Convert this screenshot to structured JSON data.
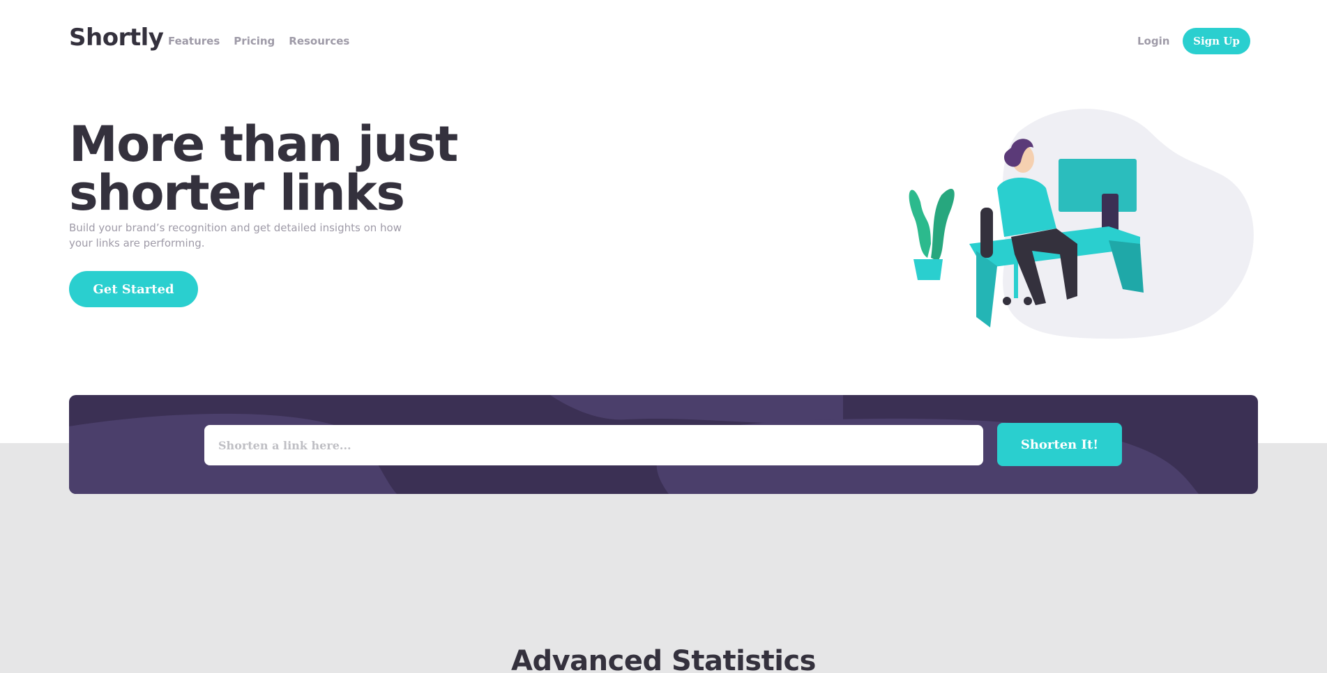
{
  "header": {
    "logo": "Shortly",
    "nav": [
      "Features",
      "Pricing",
      "Resources"
    ],
    "login": "Login",
    "signup": "Sign Up"
  },
  "hero": {
    "title": "More than just shorter links",
    "subtitle": "Build your brand’s recognition and get detailed insights on how your links are performing.",
    "cta": "Get Started",
    "illustration": "person-working-at-desk-illustration"
  },
  "shorten": {
    "placeholder": "Shorten a link here...",
    "value": "",
    "button": "Shorten It!"
  },
  "stats": {
    "title": "Advanced Statistics"
  },
  "colors": {
    "cyan": "#2acfcf",
    "dark_violet": "#3b3054",
    "grayish_violet": "#9e9aa7",
    "very_dark_blue": "#34313d",
    "light_gray_band": "#e6e6e7"
  }
}
